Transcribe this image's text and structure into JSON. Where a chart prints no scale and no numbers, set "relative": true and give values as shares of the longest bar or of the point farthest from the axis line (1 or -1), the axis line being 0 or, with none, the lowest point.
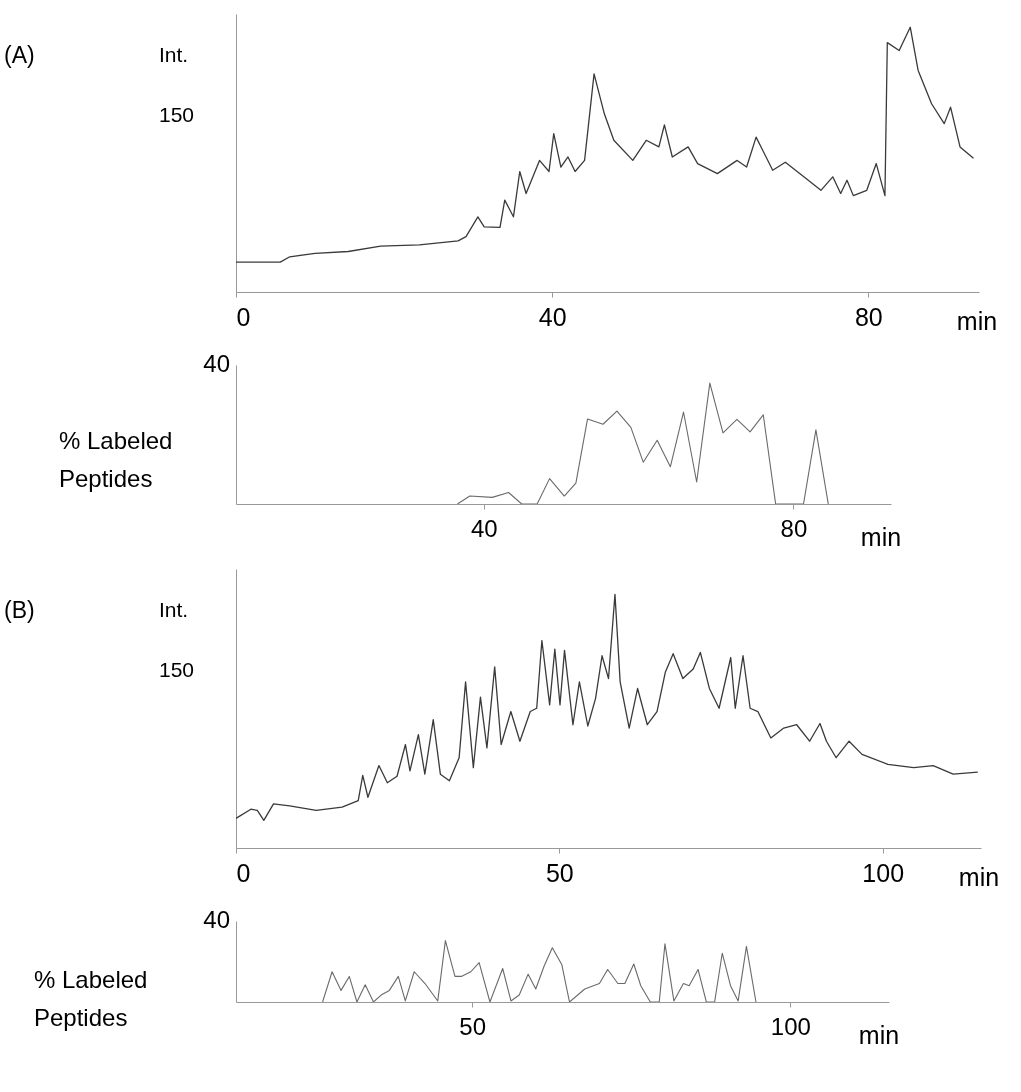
{
  "chart_data": [
    {
      "type": "line",
      "ylabel": "Int.",
      "xlabel": "min",
      "annotations": [
        "(A)",
        "150"
      ],
      "relative": true,
      "color": "#3a3a3a",
      "xlim": [
        0,
        94
      ],
      "xticks": [
        0,
        40,
        80
      ],
      "x": [
        0,
        5.6,
        6.8,
        10,
        14.2,
        18.3,
        23.2,
        28.1,
        29.1,
        30.6,
        31.4,
        33.4,
        34,
        35.1,
        35.9,
        36.7,
        38.4,
        39.6,
        40.2,
        41.1,
        42,
        42.9,
        44.1,
        45.3,
        46.6,
        47.8,
        50.2,
        51.9,
        53.5,
        54.2,
        55.2,
        57.2,
        58.4,
        60.9,
        63.4,
        64.6,
        65.8,
        67.9,
        69.5,
        72.4,
        74,
        75.5,
        76.5,
        77.3,
        78.1,
        79.8,
        81,
        82.1,
        82.4,
        83.9,
        85.3,
        86.3,
        88,
        89.6,
        90.4,
        91.6,
        93.3
      ],
      "values": [
        0.113,
        0.113,
        0.133,
        0.146,
        0.153,
        0.173,
        0.178,
        0.193,
        0.209,
        0.284,
        0.246,
        0.244,
        0.347,
        0.284,
        0.455,
        0.372,
        0.497,
        0.455,
        0.598,
        0.472,
        0.51,
        0.455,
        0.497,
        0.824,
        0.673,
        0.573,
        0.497,
        0.573,
        0.548,
        0.631,
        0.51,
        0.548,
        0.485,
        0.447,
        0.497,
        0.472,
        0.585,
        0.46,
        0.49,
        0.422,
        0.384,
        0.435,
        0.372,
        0.422,
        0.364,
        0.384,
        0.485,
        0.364,
        0.942,
        0.912,
        1.0,
        0.837,
        0.711,
        0.636,
        0.698,
        0.548,
        0.505
      ]
    },
    {
      "type": "line",
      "ylabel": "% Labeled\nPeptides",
      "xlabel": "min",
      "annotations": [
        "40"
      ],
      "relative": true,
      "color": "#6a6a6a",
      "xlim": [
        8,
        92.6
      ],
      "xticks": [
        40,
        80
      ],
      "x": [
        36.6,
        38.2,
        41.1,
        43.2,
        44.9,
        46.9,
        48.5,
        50.4,
        51.9,
        53.4,
        55.4,
        57.2,
        59,
        60.6,
        62.4,
        64.1,
        65.8,
        67.5,
        69.2,
        70.9,
        72.7,
        74.4,
        76.1,
        77.7,
        81.3,
        82.9,
        84.5
      ],
      "values": [
        0,
        0.066,
        0.055,
        0.095,
        0,
        0,
        0.21,
        0.066,
        0.173,
        0.703,
        0.66,
        0.769,
        0.634,
        0.346,
        0.527,
        0.308,
        0.761,
        0.182,
        1,
        0.588,
        0.7,
        0.597,
        0.738,
        0,
        0,
        0.614,
        0
      ]
    },
    {
      "type": "line",
      "ylabel": "Int.",
      "xlabel": "min",
      "annotations": [
        "(B)",
        "150"
      ],
      "relative": true,
      "color": "#3a3a3a",
      "xlim": [
        0,
        115.2
      ],
      "xticks": [
        0,
        50,
        100
      ],
      "x": [
        0,
        2.3,
        3.3,
        4.3,
        5.8,
        8.3,
        12.4,
        16.4,
        18.9,
        19.6,
        20.4,
        22.1,
        23.4,
        24.9,
        26.2,
        26.9,
        28.2,
        29.2,
        30.5,
        31.6,
        33,
        34.5,
        35.5,
        36.7,
        37.8,
        38.8,
        40,
        41,
        42.5,
        43.9,
        45.5,
        46.5,
        47.3,
        48.5,
        49.3,
        50.1,
        50.8,
        52.1,
        53.1,
        54.4,
        55.6,
        56.6,
        57.6,
        58.6,
        59.4,
        60.8,
        62.1,
        63.6,
        65.1,
        66.4,
        67.6,
        69.1,
        70.7,
        71.8,
        73.2,
        74.7,
        76.5,
        77.2,
        78.4,
        79.5,
        80.7,
        82.7,
        84.7,
        86.7,
        88.7,
        90.3,
        91.3,
        92.8,
        94.8,
        96.8,
        100.8,
        104.8,
        107.8,
        110.9,
        114.7
      ],
      "values": [
        0.117,
        0.153,
        0.148,
        0.109,
        0.174,
        0.166,
        0.148,
        0.161,
        0.187,
        0.286,
        0.2,
        0.325,
        0.257,
        0.283,
        0.408,
        0.304,
        0.447,
        0.291,
        0.506,
        0.291,
        0.265,
        0.356,
        0.655,
        0.317,
        0.595,
        0.395,
        0.714,
        0.408,
        0.538,
        0.421,
        0.538,
        0.551,
        0.818,
        0.564,
        0.784,
        0.564,
        0.779,
        0.486,
        0.655,
        0.481,
        0.59,
        0.758,
        0.668,
        1.0,
        0.655,
        0.473,
        0.629,
        0.486,
        0.538,
        0.694,
        0.766,
        0.668,
        0.706,
        0.771,
        0.629,
        0.551,
        0.751,
        0.551,
        0.758,
        0.551,
        0.538,
        0.434,
        0.473,
        0.486,
        0.421,
        0.491,
        0.421,
        0.356,
        0.421,
        0.369,
        0.33,
        0.317,
        0.325,
        0.291,
        0.299
      ]
    },
    {
      "type": "line",
      "ylabel": "% Labeled\nPeptides",
      "xlabel": "min",
      "annotations": [
        "40"
      ],
      "relative": true,
      "color": "#6a6a6a",
      "xlim": [
        12.9,
        115.5
      ],
      "xticks": [
        50,
        100
      ],
      "x": [
        26.5,
        28,
        29.4,
        30.7,
        31.9,
        33.2,
        34.5,
        35.7,
        37,
        38.4,
        39.5,
        40.9,
        42.6,
        44.6,
        45.8,
        47.3,
        48.3,
        49.8,
        51.1,
        52.8,
        54.8,
        56.1,
        57.4,
        58.8,
        60,
        61.3,
        62.6,
        64.1,
        65.3,
        67.7,
        70,
        71.3,
        72.9,
        74,
        75.4,
        76.5,
        78,
        79.4,
        80.3,
        81.7,
        83.2,
        84.1,
        85.5,
        86.8,
        88.1,
        89.3,
        90.6,
        91.8,
        93.1,
        94.6
      ],
      "values": [
        0,
        0.493,
        0.189,
        0.417,
        0,
        0.281,
        0,
        0.113,
        0.189,
        0.417,
        0.017,
        0.493,
        0.301,
        0.017,
        1,
        0.417,
        0.417,
        0.493,
        0.642,
        0,
        0.546,
        0.017,
        0.113,
        0.454,
        0.212,
        0.583,
        0.884,
        0.606,
        0,
        0.212,
        0.301,
        0.53,
        0.301,
        0.301,
        0.619,
        0.265,
        0,
        0,
        0.947,
        0.017,
        0.301,
        0.265,
        0.53,
        0,
        0,
        0.795,
        0.265,
        0.017,
        0.907,
        0
      ]
    }
  ]
}
